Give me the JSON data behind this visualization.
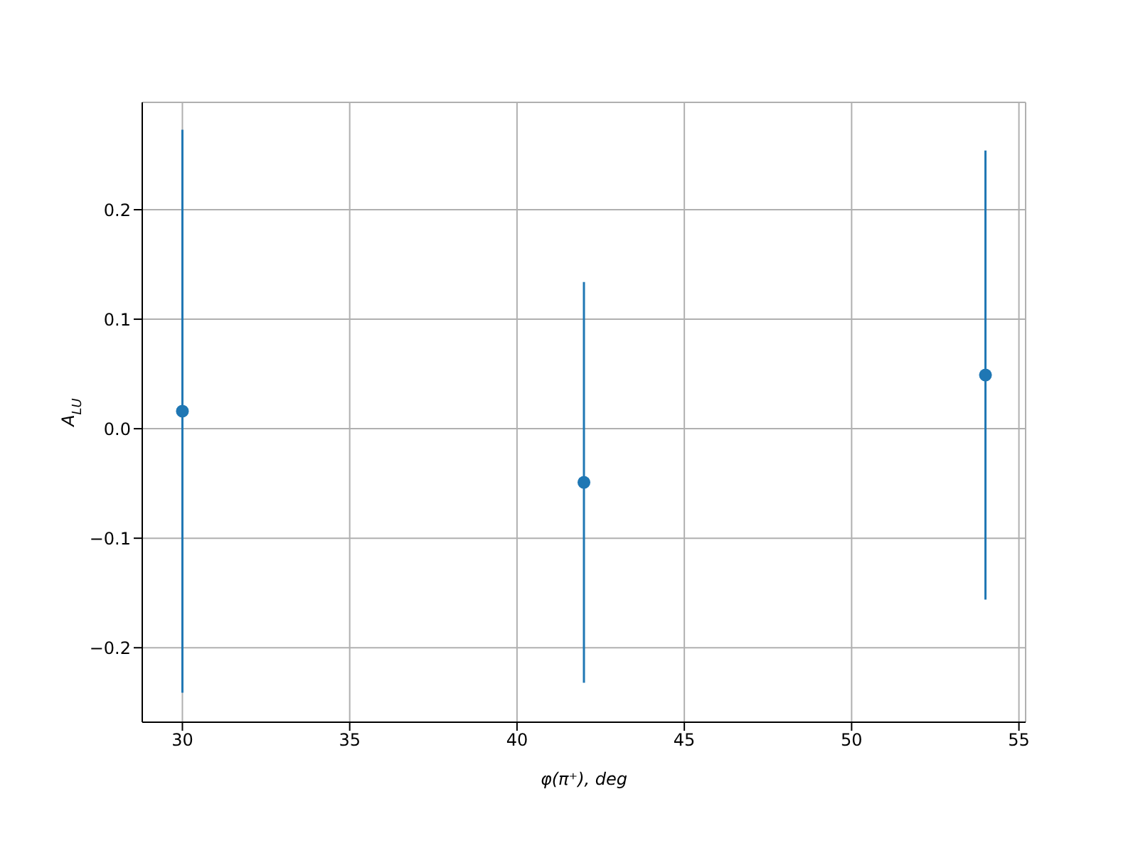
{
  "chart_data": {
    "type": "scatter",
    "xlabel": "φ(π⁺), deg",
    "ylabel": "A$_{LU}$",
    "x": [
      30,
      42,
      54
    ],
    "series": [
      {
        "color": "#1f77b4",
        "values": [
          0.016,
          -0.049,
          0.049
        ],
        "errors": [
          0.257,
          0.183,
          0.205
        ]
      }
    ],
    "xlim": [
      28.8,
      55.2
    ],
    "ylim": [
      -0.268,
      0.298
    ],
    "xticks": [
      30,
      35,
      40,
      45,
      50,
      55
    ],
    "yticks": [
      {
        "value": -0.2,
        "label": "−0.2"
      },
      {
        "value": -0.1,
        "label": "−0.1"
      },
      {
        "value": 0,
        "label": "0.0"
      },
      {
        "value": 0.1,
        "label": "0.1"
      },
      {
        "value": 0.2,
        "label": "0.2"
      }
    ],
    "grid": true,
    "marker": "circle"
  }
}
